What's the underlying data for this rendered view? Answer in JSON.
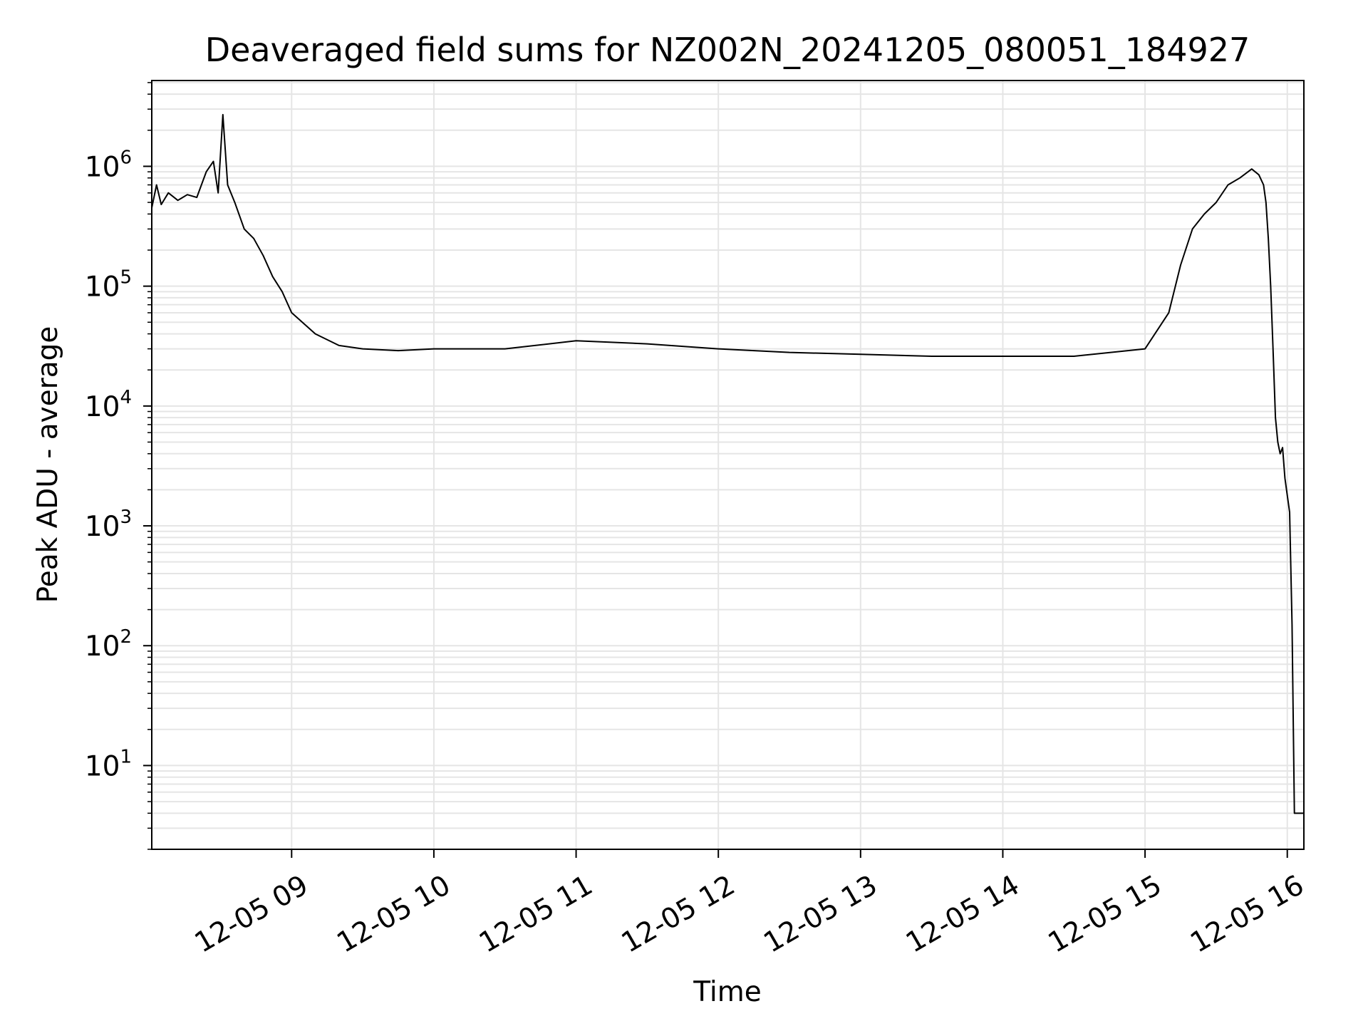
{
  "chart_data": {
    "type": "line",
    "title": "Deaveraged field sums for NZ002N_20241205_080051_184927",
    "xlabel": "Time",
    "ylabel": "Peak ADU - average",
    "y_scale": "log",
    "ylim": [
      2,
      5200000
    ],
    "xlim": [
      "2024-12-05 08:01",
      "2024-12-05 16:07"
    ],
    "grid": true,
    "colors": {
      "line": "#000000",
      "grid": "#e5e5e5",
      "background": "#ffffff"
    },
    "x_ticks": [
      {
        "t": "2024-12-05 09:00",
        "label": "12-05 09"
      },
      {
        "t": "2024-12-05 10:00",
        "label": "12-05 10"
      },
      {
        "t": "2024-12-05 11:00",
        "label": "12-05 11"
      },
      {
        "t": "2024-12-05 12:00",
        "label": "12-05 12"
      },
      {
        "t": "2024-12-05 13:00",
        "label": "12-05 13"
      },
      {
        "t": "2024-12-05 14:00",
        "label": "12-05 14"
      },
      {
        "t": "2024-12-05 15:00",
        "label": "12-05 15"
      },
      {
        "t": "2024-12-05 16:00",
        "label": "12-05 16"
      }
    ],
    "y_ticks": [
      {
        "value": 10,
        "base": "10",
        "exp": "1"
      },
      {
        "value": 100,
        "base": "10",
        "exp": "2"
      },
      {
        "value": 1000,
        "base": "10",
        "exp": "3"
      },
      {
        "value": 10000,
        "base": "10",
        "exp": "4"
      },
      {
        "value": 100000,
        "base": "10",
        "exp": "5"
      },
      {
        "value": 1000000,
        "base": "10",
        "exp": "6"
      }
    ],
    "series": [
      {
        "values": [
          [
            "2024-12-05 08:01",
            450000
          ],
          [
            "2024-12-05 08:03",
            700000
          ],
          [
            "2024-12-05 08:05",
            480000
          ],
          [
            "2024-12-05 08:08",
            600000
          ],
          [
            "2024-12-05 08:12",
            520000
          ],
          [
            "2024-12-05 08:16",
            580000
          ],
          [
            "2024-12-05 08:20",
            550000
          ],
          [
            "2024-12-05 08:24",
            900000
          ],
          [
            "2024-12-05 08:27",
            1100000
          ],
          [
            "2024-12-05 08:29",
            600000
          ],
          [
            "2024-12-05 08:31",
            2700000
          ],
          [
            "2024-12-05 08:33",
            700000
          ],
          [
            "2024-12-05 08:36",
            500000
          ],
          [
            "2024-12-05 08:40",
            300000
          ],
          [
            "2024-12-05 08:44",
            250000
          ],
          [
            "2024-12-05 08:48",
            180000
          ],
          [
            "2024-12-05 08:52",
            120000
          ],
          [
            "2024-12-05 08:56",
            90000
          ],
          [
            "2024-12-05 09:00",
            60000
          ],
          [
            "2024-12-05 09:10",
            40000
          ],
          [
            "2024-12-05 09:20",
            32000
          ],
          [
            "2024-12-05 09:30",
            30000
          ],
          [
            "2024-12-05 09:45",
            29000
          ],
          [
            "2024-12-05 10:00",
            30000
          ],
          [
            "2024-12-05 10:30",
            30000
          ],
          [
            "2024-12-05 11:00",
            35000
          ],
          [
            "2024-12-05 11:30",
            33000
          ],
          [
            "2024-12-05 12:00",
            30000
          ],
          [
            "2024-12-05 12:30",
            28000
          ],
          [
            "2024-12-05 13:00",
            27000
          ],
          [
            "2024-12-05 13:30",
            26000
          ],
          [
            "2024-12-05 14:00",
            26000
          ],
          [
            "2024-12-05 14:30",
            26000
          ],
          [
            "2024-12-05 15:00",
            30000
          ],
          [
            "2024-12-05 15:10",
            60000
          ],
          [
            "2024-12-05 15:15",
            150000
          ],
          [
            "2024-12-05 15:20",
            300000
          ],
          [
            "2024-12-05 15:25",
            400000
          ],
          [
            "2024-12-05 15:30",
            500000
          ],
          [
            "2024-12-05 15:35",
            700000
          ],
          [
            "2024-12-05 15:40",
            800000
          ],
          [
            "2024-12-05 15:45",
            950000
          ],
          [
            "2024-12-05 15:48",
            850000
          ],
          [
            "2024-12-05 15:50",
            700000
          ],
          [
            "2024-12-05 15:51",
            500000
          ],
          [
            "2024-12-05 15:52",
            250000
          ],
          [
            "2024-12-05 15:53",
            100000
          ],
          [
            "2024-12-05 15:54",
            30000
          ],
          [
            "2024-12-05 15:55",
            8000
          ],
          [
            "2024-12-05 15:56",
            5000
          ],
          [
            "2024-12-05 15:57",
            4000
          ],
          [
            "2024-12-05 15:58",
            4500
          ],
          [
            "2024-12-05 15:59",
            2500
          ],
          [
            "2024-12-05 16:00",
            1800
          ],
          [
            "2024-12-05 16:01",
            1300
          ],
          [
            "2024-12-05 16:02",
            150
          ],
          [
            "2024-12-05 16:03",
            4
          ],
          [
            "2024-12-05 16:07",
            4
          ]
        ]
      }
    ]
  }
}
